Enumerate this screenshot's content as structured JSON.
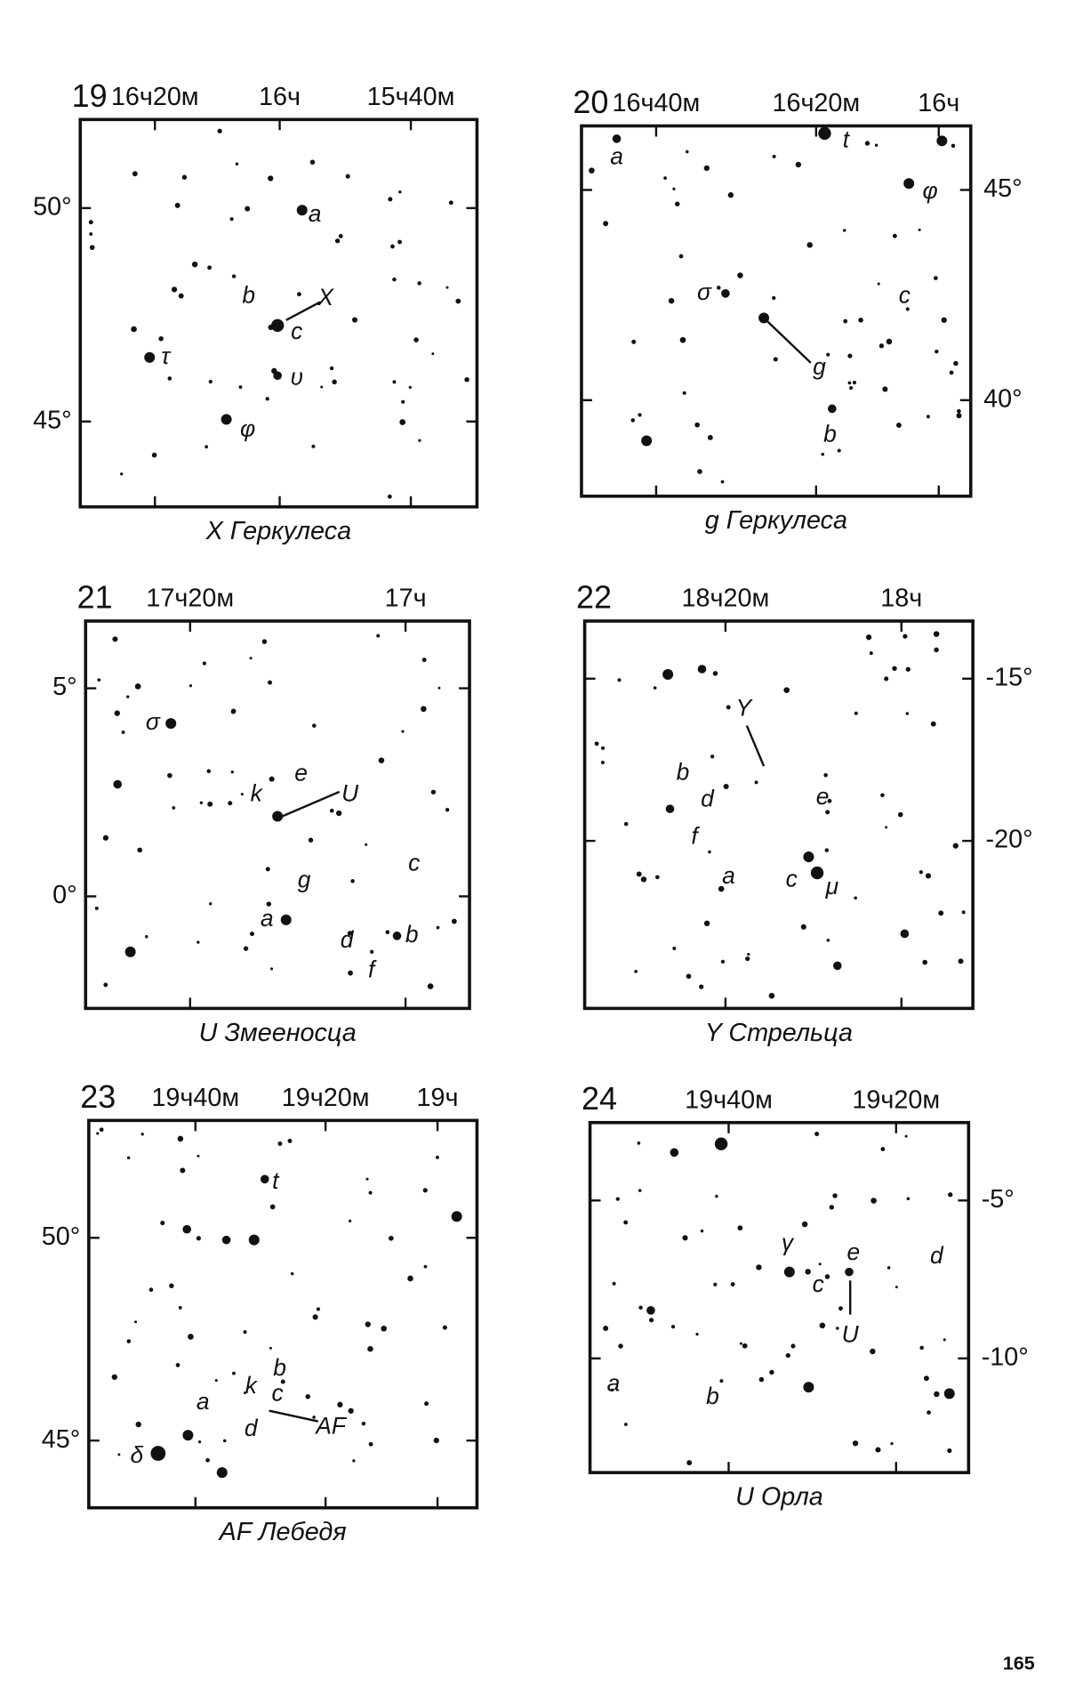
{
  "page_number": "165",
  "panels": [
    {
      "number": "19",
      "ra_labels": [
        "16ч20м",
        "16ч",
        "15ч40м"
      ],
      "dec_labels": [
        "50°",
        "45°"
      ],
      "star_labels": [
        "a",
        "b",
        "X",
        "c",
        "υ",
        "τ",
        "φ"
      ],
      "caption": "X Геркулеса"
    },
    {
      "number": "20",
      "ra_labels": [
        "16ч40м",
        "16ч20м",
        "16ч"
      ],
      "dec_labels": [
        "45°",
        "40°"
      ],
      "star_labels": [
        "a",
        "t",
        "φ",
        "σ",
        "c",
        "g",
        "b"
      ],
      "caption": "g Геркулеса"
    },
    {
      "number": "21",
      "ra_labels": [
        "17ч20м",
        "17ч"
      ],
      "dec_labels": [
        "5°",
        "0°"
      ],
      "star_labels": [
        "σ",
        "k",
        "e",
        "U",
        "c",
        "g",
        "a",
        "d",
        "b",
        "f"
      ],
      "caption": "U Змееносца"
    },
    {
      "number": "22",
      "ra_labels": [
        "18ч20м",
        "18ч"
      ],
      "dec_labels": [
        "-15°",
        "-20°"
      ],
      "star_labels": [
        "Y",
        "b",
        "d",
        "f",
        "e",
        "a",
        "c",
        "μ"
      ],
      "caption": "Y Стрельца"
    },
    {
      "number": "23",
      "ra_labels": [
        "19ч40м",
        "19ч20м",
        "19ч"
      ],
      "dec_labels": [
        "50°",
        "45°"
      ],
      "star_labels": [
        "t",
        "k",
        "b",
        "a",
        "c",
        "d",
        "AF",
        "δ"
      ],
      "caption": "AF Лебедя"
    },
    {
      "number": "24",
      "ra_labels": [
        "19ч40м",
        "19ч20м"
      ],
      "dec_labels": [
        "-5°",
        "-10°"
      ],
      "star_labels": [
        "γ",
        "e",
        "d",
        "c",
        "U",
        "a",
        "b"
      ],
      "caption": "U Орла"
    }
  ]
}
